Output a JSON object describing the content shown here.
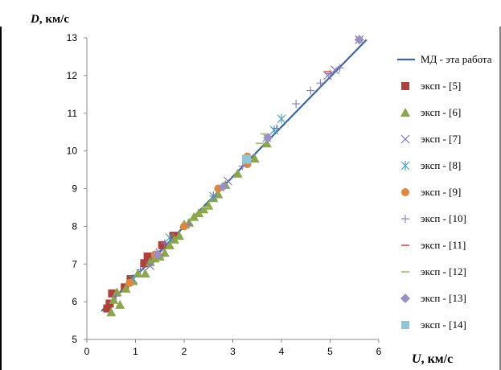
{
  "chart_data": {
    "type": "scatter",
    "ylabel_var": "D",
    "ylabel_unit": ", км/с",
    "xlabel_var": "U",
    "xlabel_unit": ", км/с",
    "xlim": [
      0,
      6
    ],
    "ylim": [
      5,
      13
    ],
    "x_ticks": [
      0,
      1,
      2,
      3,
      4,
      5,
      6
    ],
    "y_ticks": [
      5,
      6,
      7,
      8,
      9,
      10,
      11,
      12,
      13
    ],
    "grid": false,
    "legend_position": "right",
    "line": {
      "name": "МД - эта работа",
      "color": "#3b66a8",
      "x": [
        0.3,
        5.75
      ],
      "y": [
        5.75,
        12.95
      ]
    },
    "series": [
      {
        "name": "эксп - [5]",
        "marker": "square",
        "color": "#b0403c",
        "x": [
          0.42,
          0.47,
          0.52,
          0.78,
          0.9,
          1.18,
          1.25,
          1.55,
          1.78
        ],
        "y": [
          5.82,
          5.95,
          6.22,
          6.38,
          6.6,
          7.02,
          7.2,
          7.5,
          7.75
        ]
      },
      {
        "name": "эксп - [6]",
        "marker": "triangle",
        "color": "#8aa84a",
        "x": [
          0.5,
          0.55,
          0.62,
          0.68,
          0.8,
          0.95,
          1.05,
          1.2,
          1.3,
          1.4,
          1.5,
          1.6,
          1.7,
          1.8,
          1.9,
          2.0,
          2.1,
          2.2,
          2.3,
          2.4,
          2.5,
          2.6,
          2.7,
          2.85,
          3.1,
          3.45,
          3.7
        ],
        "y": [
          5.72,
          6.05,
          6.25,
          5.92,
          6.35,
          6.55,
          6.75,
          6.75,
          7.05,
          7.15,
          7.2,
          7.3,
          7.5,
          7.65,
          7.75,
          8.05,
          8.1,
          8.25,
          8.35,
          8.45,
          8.55,
          8.75,
          8.85,
          9.1,
          9.4,
          9.8,
          10.2
        ]
      },
      {
        "name": "эксп - [7]",
        "marker": "x",
        "color": "#7b74c9",
        "x": [
          1.3,
          1.5,
          2.9,
          3.7,
          4.95,
          5.1,
          5.6
        ],
        "y": [
          6.95,
          7.3,
          9.2,
          10.35,
          12.0,
          12.15,
          12.95
        ]
      },
      {
        "name": "эксп - [8]",
        "marker": "asterisk",
        "color": "#4aa3c2",
        "x": [
          0.95,
          1.7,
          2.6,
          3.85,
          4.0
        ],
        "y": [
          6.6,
          7.7,
          8.8,
          10.55,
          10.85
        ]
      },
      {
        "name": "эксп - [9]",
        "marker": "circle",
        "color": "#e0883a",
        "x": [
          0.88,
          1.4,
          2.0,
          2.7,
          3.3,
          3.3
        ],
        "y": [
          6.5,
          7.25,
          8.0,
          9.0,
          9.65,
          9.85
        ]
      },
      {
        "name": "эксп - [10]",
        "marker": "plus",
        "color": "#7f79c3",
        "x": [
          0.6,
          1.1,
          1.6,
          2.1,
          2.6,
          3.2,
          3.9,
          4.3,
          4.6,
          4.8,
          5.0,
          5.2
        ],
        "y": [
          6.15,
          6.85,
          7.55,
          8.05,
          8.8,
          9.6,
          10.6,
          11.25,
          11.6,
          11.8,
          12.05,
          12.2
        ]
      },
      {
        "name": "эксп - [11]",
        "marker": "dash",
        "color": "#e45a5a",
        "x": [
          4.95
        ],
        "y": [
          12.1
        ]
      },
      {
        "name": "эксп - [12]",
        "marker": "dash",
        "color": "#a8c46c",
        "x": [
          2.45,
          3.55,
          3.65
        ],
        "y": [
          8.5,
          10.2,
          10.45
        ]
      },
      {
        "name": "эксп - [13]",
        "marker": "diamond",
        "color": "#9a90c6",
        "x": [
          1.45,
          2.8,
          3.72,
          5.6
        ],
        "y": [
          7.25,
          9.05,
          10.35,
          12.95
        ]
      },
      {
        "name": "эксп - [14]",
        "marker": "square",
        "color": "#8fc6db",
        "x": [
          3.28
        ],
        "y": [
          9.78
        ]
      }
    ]
  }
}
